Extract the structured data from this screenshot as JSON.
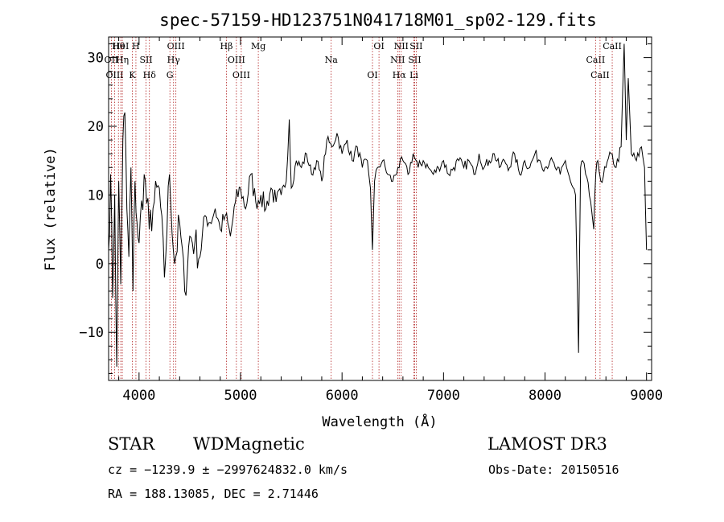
{
  "chart_data": {
    "type": "line",
    "title": "spec-57159-HD123751N041718M01_sp02-129.fits",
    "xlabel": "Wavelength (Å)",
    "ylabel": "Flux (relative)",
    "xlim": [
      3700,
      9050
    ],
    "ylim": [
      -17,
      33
    ],
    "x_ticks": [
      4000,
      5000,
      6000,
      7000,
      8000,
      9000
    ],
    "x_tick_labels": [
      "4000",
      "5000",
      "6000",
      "7000",
      "8000",
      "9000"
    ],
    "y_ticks": [
      -10,
      0,
      10,
      20,
      30
    ],
    "y_tick_labels": [
      "−10",
      "0",
      "10",
      "20",
      "30"
    ],
    "grid": false,
    "series": [
      {
        "color": "#000000",
        "x": [
          3700,
          3720,
          3740,
          3760,
          3780,
          3800,
          3820,
          3840,
          3860,
          3880,
          3900,
          3920,
          3940,
          3960,
          3980,
          4000,
          4050,
          4100,
          4150,
          4200,
          4250,
          4300,
          4350,
          4400,
          4450,
          4500,
          4550,
          4600,
          4650,
          4700,
          4750,
          4800,
          4850,
          4900,
          4950,
          5000,
          5050,
          5100,
          5150,
          5200,
          5250,
          5300,
          5350,
          5400,
          5450,
          5480,
          5500,
          5550,
          5600,
          5650,
          5700,
          5750,
          5800,
          5850,
          5900,
          5950,
          6000,
          6050,
          6100,
          6150,
          6200,
          6250,
          6280,
          6300,
          6320,
          6350,
          6400,
          6450,
          6500,
          6550,
          6600,
          6650,
          6700,
          6750,
          6800,
          6850,
          6900,
          6950,
          7000,
          7050,
          7100,
          7150,
          7200,
          7250,
          7300,
          7350,
          7400,
          7450,
          7500,
          7550,
          7600,
          7650,
          7700,
          7750,
          7800,
          7850,
          7900,
          7950,
          8000,
          8050,
          8100,
          8150,
          8200,
          8250,
          8300,
          8330,
          8350,
          8370,
          8400,
          8450,
          8480,
          8500,
          8520,
          8550,
          8600,
          8650,
          8700,
          8750,
          8780,
          8800,
          8820,
          8850,
          8900,
          8950,
          8980,
          9000
        ],
        "y": [
          2,
          13,
          -5,
          10,
          -15,
          12,
          -3,
          18,
          22,
          8,
          1,
          14,
          -4,
          12,
          6,
          3,
          13,
          5,
          9,
          11,
          -2,
          13,
          0,
          6,
          -4,
          4,
          3,
          1,
          7,
          6,
          8,
          5,
          7,
          4,
          9,
          11,
          8,
          13,
          9,
          10,
          8,
          11,
          9,
          10,
          12,
          21,
          11,
          15,
          14,
          16,
          13,
          15,
          12,
          18,
          17,
          19,
          16,
          18,
          15,
          17,
          14,
          15,
          11,
          2,
          12,
          14,
          15,
          13,
          12,
          14,
          15,
          13,
          16,
          14,
          15,
          14,
          13,
          14,
          15,
          13,
          14,
          15,
          14,
          15,
          13,
          16,
          14,
          15,
          16,
          14,
          15,
          14,
          16,
          13,
          15,
          14,
          16,
          15,
          14,
          15,
          14,
          13,
          15,
          12,
          10,
          -13,
          14,
          15,
          13,
          9,
          5,
          13,
          15,
          12,
          14,
          16,
          14,
          17,
          32,
          18,
          27,
          16,
          15,
          17,
          14,
          2
        ]
      }
    ],
    "line_markers": [
      {
        "label": "Hθ",
        "x": 3797
      },
      {
        "label": "OII",
        "x": 3727
      },
      {
        "label": "OIII",
        "x": 3760
      },
      {
        "label": "HeI",
        "x": 3820
      },
      {
        "label": "Hη",
        "x": 3835
      },
      {
        "label": "K",
        "x": 3934
      },
      {
        "label": "H",
        "x": 3969
      },
      {
        "label": "SII",
        "x": 4069
      },
      {
        "label": "Hδ",
        "x": 4102
      },
      {
        "label": "OIII",
        "x": 4363
      },
      {
        "label": "Hγ",
        "x": 4340
      },
      {
        "label": "G",
        "x": 4304
      },
      {
        "label": "Hβ",
        "x": 4861
      },
      {
        "label": "OIII",
        "x": 4959
      },
      {
        "label": "OIII",
        "x": 5007
      },
      {
        "label": "Mg",
        "x": 5175
      },
      {
        "label": "Na",
        "x": 5893
      },
      {
        "label": "OI",
        "x": 6300
      },
      {
        "label": "OI",
        "x": 6364
      },
      {
        "label": "NII",
        "x": 6548
      },
      {
        "label": "Hα",
        "x": 6563
      },
      {
        "label": "NII",
        "x": 6583
      },
      {
        "label": "SII",
        "x": 6716
      },
      {
        "label": "Li",
        "x": 6708
      },
      {
        "label": "SII",
        "x": 6731
      },
      {
        "label": "CaII",
        "x": 8498
      },
      {
        "label": "CaII",
        "x": 8542
      },
      {
        "label": "CaII",
        "x": 8662
      }
    ]
  },
  "info": {
    "class": "STAR",
    "subclass": "WDMagnetic",
    "survey": "LAMOST DR3",
    "cz_line": "cz = −1239.9 ± −2997624832.0 km/s",
    "obs_date_line": "Obs-Date: 20150516",
    "coords_line": "RA = 188.13085, DEC =    2.71446"
  }
}
